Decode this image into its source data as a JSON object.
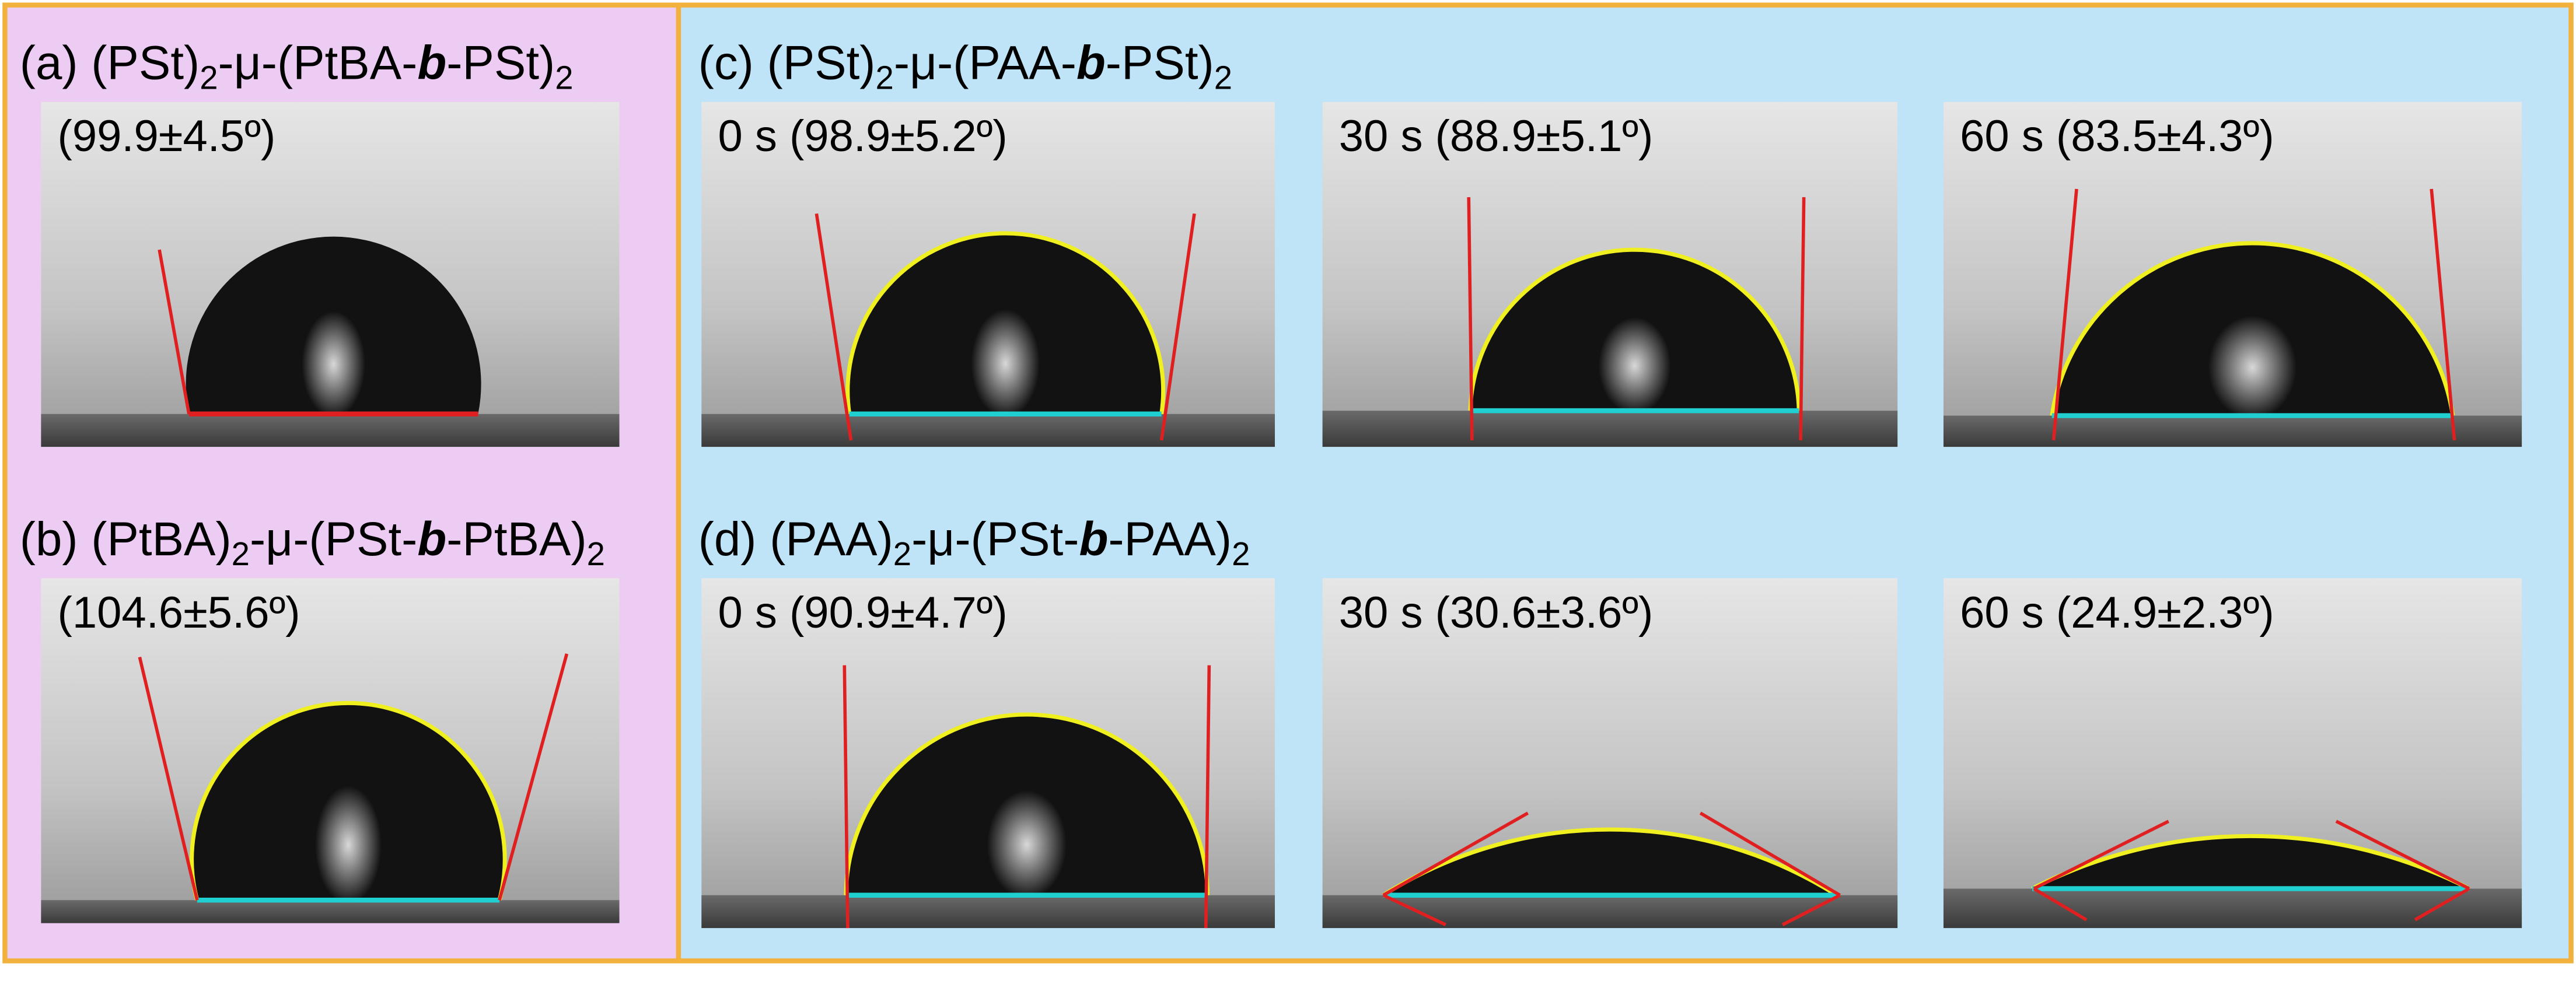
{
  "panels": [
    {
      "title": [
        "(a) (PSt)",
        "2",
        "-μ-(PtBA-",
        "b",
        "-PSt)",
        "2"
      ],
      "images": [
        {
          "caption": "(99.9±4.5º)"
        }
      ]
    },
    {
      "title": [
        "(b) (PtBA)",
        "2",
        "-μ-(PSt-",
        "b",
        "-PtBA)",
        "2"
      ],
      "images": [
        {
          "caption": "(104.6±5.6º)"
        }
      ]
    },
    {
      "title": [
        "(c) (PSt)",
        "2",
        "-μ-(PAA-",
        "b",
        "-PSt)",
        "2"
      ],
      "images": [
        {
          "caption": "0 s (98.9±5.2º)"
        },
        {
          "caption": "30 s (88.9±5.1º)"
        },
        {
          "caption": "60 s (83.5±4.3º)"
        }
      ]
    },
    {
      "title": [
        "(d) (PAA)",
        "2",
        "-μ-(PSt-",
        "b",
        "-PAA)",
        "2"
      ],
      "images": [
        {
          "caption": "0 s (90.9±4.7º)"
        },
        {
          "caption": "30 s (30.6±3.6º)"
        },
        {
          "caption": "60 s (24.9±2.3º)"
        }
      ]
    }
  ]
}
